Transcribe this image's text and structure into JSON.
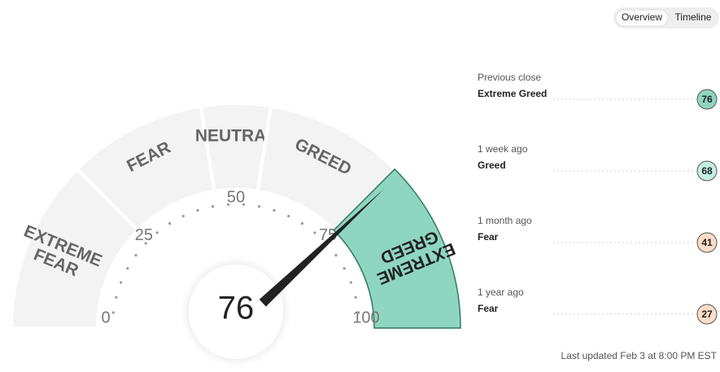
{
  "tabs": [
    "Overview",
    "Timeline"
  ],
  "gauge": {
    "value": 76,
    "ticks": [
      0,
      25,
      50,
      75,
      100
    ],
    "segments": [
      {
        "label": "EXTREME FEAR",
        "range": [
          0,
          25
        ]
      },
      {
        "label": "FEAR",
        "range": [
          25,
          45
        ]
      },
      {
        "label": "NEUTRAL",
        "range": [
          45,
          55
        ]
      },
      {
        "label": "GREED",
        "range": [
          55,
          75
        ]
      },
      {
        "label": "EXTREME GREED",
        "range": [
          75,
          100
        ]
      }
    ],
    "highlight_color": "#8fd6c0"
  },
  "history": [
    {
      "label": "Previous close",
      "rating": "Extreme Greed",
      "value": 76,
      "color": "#8fd6c0"
    },
    {
      "label": "1 week ago",
      "rating": "Greed",
      "value": 68,
      "color": "#c3efe2"
    },
    {
      "label": "1 month ago",
      "rating": "Fear",
      "value": 41,
      "color": "#fddcc8"
    },
    {
      "label": "1 year ago",
      "rating": "Fear",
      "value": 27,
      "color": "#fddcc8"
    }
  ],
  "footer": "Last updated Feb 3 at 8:00 PM EST"
}
